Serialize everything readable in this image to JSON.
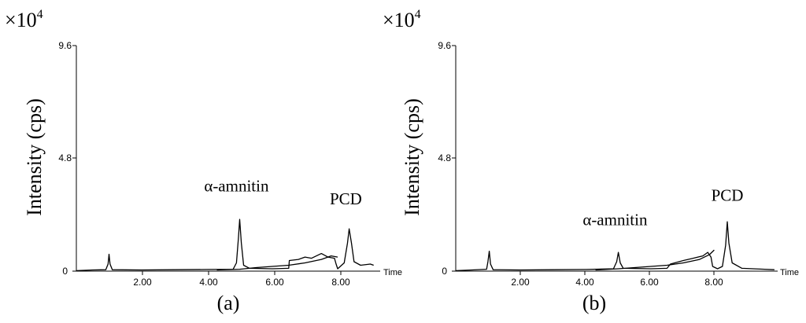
{
  "chart_data": [
    {
      "type": "line",
      "panel_label": "(a)",
      "scale_factor": "×10",
      "scale_exponent": "4",
      "ylabel": "Intensity (cps)",
      "xlabel": "Time",
      "xlim": [
        0,
        9.3
      ],
      "ylim": [
        0,
        9.6
      ],
      "x_ticks": [
        2,
        4,
        6,
        8
      ],
      "x_tick_labels": [
        "2.00",
        "4.00",
        "6.00",
        "8.00"
      ],
      "y_ticks": [
        0,
        4.8,
        9.6
      ],
      "y_tick_labels": [
        "0",
        "4.8",
        "9.6"
      ],
      "annotations": [
        {
          "text": "α-amnitin",
          "x": 4.9,
          "y": 3.4
        },
        {
          "text": "PCD",
          "x": 8.25,
          "y": 2.85
        }
      ],
      "series": [
        {
          "points": [
            [
              0.0,
              0.02
            ],
            [
              0.5,
              0.05
            ],
            [
              0.9,
              0.06
            ],
            [
              0.97,
              0.3
            ],
            [
              1.0,
              0.72
            ],
            [
              1.03,
              0.3
            ],
            [
              1.1,
              0.06
            ],
            [
              2.0,
              0.05
            ],
            [
              3.0,
              0.06
            ],
            [
              4.0,
              0.07
            ],
            [
              4.8,
              0.08
            ],
            [
              4.9,
              0.35
            ],
            [
              4.96,
              1.4
            ],
            [
              5.0,
              2.2
            ],
            [
              5.05,
              1.2
            ],
            [
              5.12,
              0.25
            ],
            [
              5.3,
              0.12
            ],
            [
              6.0,
              0.1
            ],
            [
              6.5,
              0.12
            ],
            [
              6.52,
              0.45
            ],
            [
              6.8,
              0.5
            ],
            [
              7.0,
              0.6
            ],
            [
              7.2,
              0.55
            ],
            [
              7.5,
              0.75
            ],
            [
              7.7,
              0.6
            ],
            [
              7.9,
              0.55
            ],
            [
              7.95,
              0.3
            ],
            [
              8.0,
              0.1
            ],
            [
              8.2,
              0.35
            ],
            [
              8.3,
              1.2
            ],
            [
              8.35,
              1.8
            ],
            [
              8.42,
              1.2
            ],
            [
              8.5,
              0.4
            ],
            [
              8.7,
              0.25
            ],
            [
              9.0,
              0.3
            ],
            [
              9.1,
              0.25
            ]
          ]
        },
        {
          "points": [
            [
              4.3,
              0.05
            ],
            [
              5.0,
              0.08
            ],
            [
              5.5,
              0.15
            ],
            [
              6.0,
              0.2
            ],
            [
              6.5,
              0.25
            ],
            [
              7.0,
              0.35
            ],
            [
              7.5,
              0.5
            ],
            [
              7.8,
              0.65
            ],
            [
              8.0,
              0.6
            ]
          ]
        }
      ]
    },
    {
      "type": "line",
      "panel_label": "(b)",
      "scale_factor": "×10",
      "scale_exponent": "4",
      "ylabel": "Intensity (cps)",
      "xlabel": "Time",
      "xlim": [
        0,
        9.9
      ],
      "ylim": [
        0,
        9.6
      ],
      "x_ticks": [
        2,
        4,
        6,
        8
      ],
      "x_tick_labels": [
        "2.00",
        "4.00",
        "6.00",
        "8.00"
      ],
      "y_ticks": [
        0,
        4.8,
        9.6
      ],
      "y_tick_labels": [
        "0",
        "4.8",
        "9.6"
      ],
      "annotations": [
        {
          "text": "α-amnitin",
          "x": 4.9,
          "y": 1.95
        },
        {
          "text": "PCD",
          "x": 8.35,
          "y": 3.0
        }
      ],
      "series": [
        {
          "points": [
            [
              0.0,
              0.02
            ],
            [
              0.5,
              0.05
            ],
            [
              0.95,
              0.08
            ],
            [
              0.99,
              0.4
            ],
            [
              1.03,
              0.85
            ],
            [
              1.07,
              0.3
            ],
            [
              1.15,
              0.06
            ],
            [
              2.0,
              0.05
            ],
            [
              3.0,
              0.06
            ],
            [
              4.0,
              0.07
            ],
            [
              4.85,
              0.1
            ],
            [
              4.95,
              0.4
            ],
            [
              5.0,
              0.8
            ],
            [
              5.06,
              0.35
            ],
            [
              5.15,
              0.12
            ],
            [
              6.0,
              0.1
            ],
            [
              6.5,
              0.12
            ],
            [
              6.6,
              0.3
            ],
            [
              7.0,
              0.45
            ],
            [
              7.3,
              0.55
            ],
            [
              7.6,
              0.65
            ],
            [
              7.75,
              0.8
            ],
            [
              7.85,
              0.6
            ],
            [
              7.9,
              0.2
            ],
            [
              8.05,
              0.1
            ],
            [
              8.2,
              0.2
            ],
            [
              8.3,
              1.1
            ],
            [
              8.35,
              2.1
            ],
            [
              8.4,
              1.2
            ],
            [
              8.5,
              0.35
            ],
            [
              8.8,
              0.12
            ],
            [
              9.5,
              0.08
            ],
            [
              9.8,
              0.06
            ]
          ]
        },
        {
          "points": [
            [
              4.3,
              0.05
            ],
            [
              5.0,
              0.1
            ],
            [
              5.5,
              0.15
            ],
            [
              6.0,
              0.2
            ],
            [
              6.5,
              0.25
            ],
            [
              7.0,
              0.35
            ],
            [
              7.5,
              0.5
            ],
            [
              7.8,
              0.7
            ],
            [
              7.95,
              0.9
            ]
          ]
        }
      ]
    }
  ]
}
